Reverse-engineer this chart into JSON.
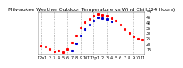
{
  "title": "Milwaukee Weather Outdoor Temperature vs Wind Chill (24 Hours)",
  "hours": [
    0,
    1,
    2,
    3,
    4,
    5,
    6,
    7,
    8,
    9,
    10,
    11,
    12,
    13,
    14,
    15,
    16,
    17,
    18,
    19,
    20,
    21,
    22,
    23
  ],
  "x_labels": [
    "12a",
    "1",
    "2",
    "3",
    "4",
    "5",
    "6",
    "7",
    "8",
    "9",
    "10",
    "11",
    "12p",
    "1",
    "2",
    "3",
    "4",
    "5",
    "6",
    "7",
    "8",
    "9",
    "10",
    "11"
  ],
  "temp": [
    18,
    17,
    15,
    13,
    14,
    12,
    15,
    21,
    28,
    35,
    40,
    43,
    46,
    48,
    47,
    46,
    44,
    42,
    38,
    34,
    30,
    27,
    25,
    24
  ],
  "wind_chill": [
    null,
    null,
    null,
    null,
    null,
    null,
    null,
    14,
    20,
    28,
    34,
    38,
    42,
    45,
    44,
    43,
    41,
    null,
    null,
    null,
    null,
    null,
    null,
    null
  ],
  "temp_color": "#ff0000",
  "wind_chill_color": "#0000cc",
  "bg_color": "#ffffff",
  "grid_color": "#888888",
  "ylim": [
    10,
    50
  ],
  "ytick_vals": [
    15,
    20,
    25,
    30,
    35,
    40,
    45,
    50
  ],
  "ytick_labels": [
    "15",
    "20",
    "25",
    "30",
    "35",
    "40",
    "45",
    "50"
  ],
  "title_fontsize": 4.5,
  "tick_fontsize": 3.5,
  "marker_size": 1.2,
  "dot_linewidth": 0.0
}
